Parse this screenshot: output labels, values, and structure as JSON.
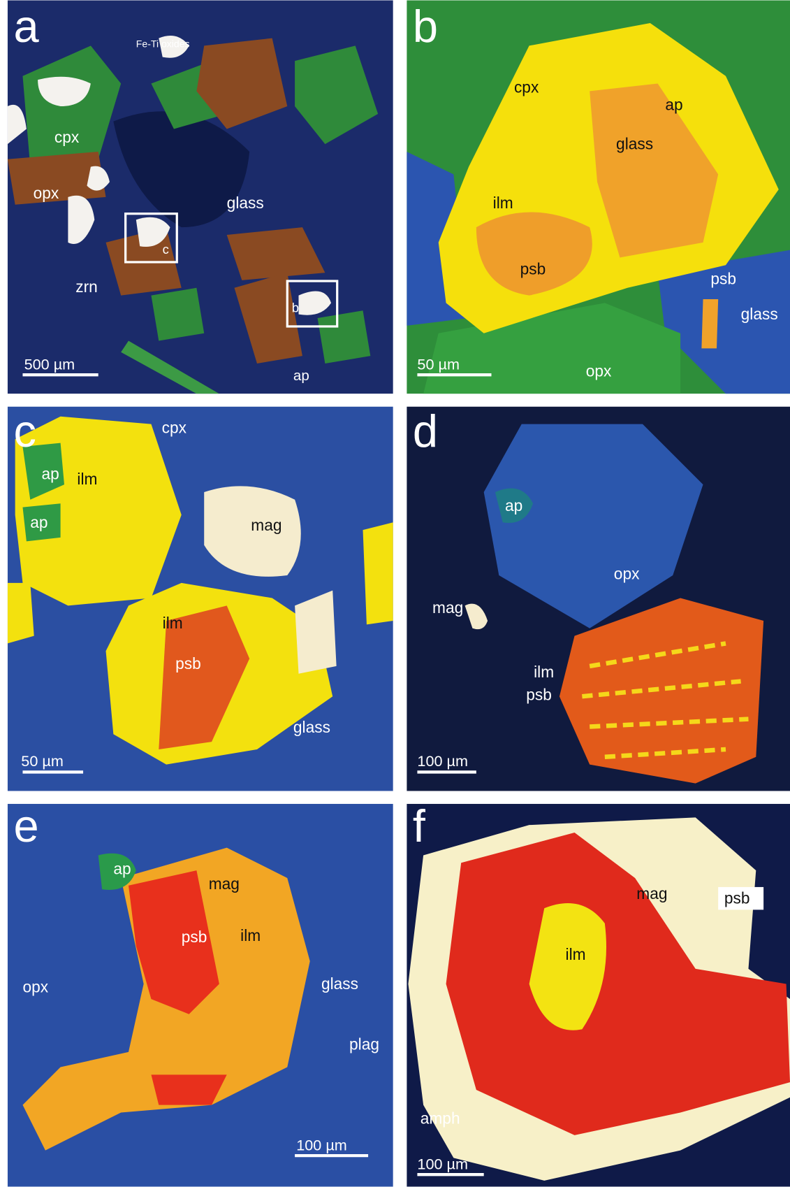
{
  "panels": [
    {
      "letter": "a",
      "labels": [
        {
          "text": "Fe-Ti oxides"
        },
        {
          "text": "cpx"
        },
        {
          "text": "opx"
        },
        {
          "text": "glass"
        },
        {
          "text": "zrn"
        },
        {
          "text": "c"
        },
        {
          "text": "b"
        },
        {
          "text": "ap"
        }
      ],
      "scale_bar": "500 µm"
    },
    {
      "letter": "b",
      "labels": [
        {
          "text": "cpx"
        },
        {
          "text": "ap"
        },
        {
          "text": "glass"
        },
        {
          "text": "ilm"
        },
        {
          "text": "psb"
        },
        {
          "text": "psb"
        },
        {
          "text": "glass"
        },
        {
          "text": "opx"
        }
      ],
      "scale_bar": "50 µm"
    },
    {
      "letter": "c",
      "labels": [
        {
          "text": "cpx"
        },
        {
          "text": "ap"
        },
        {
          "text": "ap"
        },
        {
          "text": "ilm"
        },
        {
          "text": "mag"
        },
        {
          "text": "ilm"
        },
        {
          "text": "psb"
        },
        {
          "text": "glass"
        }
      ],
      "scale_bar": "50 µm"
    },
    {
      "letter": "d",
      "labels": [
        {
          "text": "ap"
        },
        {
          "text": "opx"
        },
        {
          "text": "mag"
        },
        {
          "text": "ilm"
        },
        {
          "text": "psb"
        }
      ],
      "scale_bar": "100 µm"
    },
    {
      "letter": "e",
      "labels": [
        {
          "text": "ap"
        },
        {
          "text": "mag"
        },
        {
          "text": "psb"
        },
        {
          "text": "ilm"
        },
        {
          "text": "opx"
        },
        {
          "text": "glass"
        },
        {
          "text": "plag"
        }
      ],
      "scale_bar": "100 µm"
    },
    {
      "letter": "f",
      "labels": [
        {
          "text": "mag"
        },
        {
          "text": "psb"
        },
        {
          "text": "ilm"
        },
        {
          "text": "amph"
        }
      ],
      "scale_bar": "100 µm"
    }
  ]
}
